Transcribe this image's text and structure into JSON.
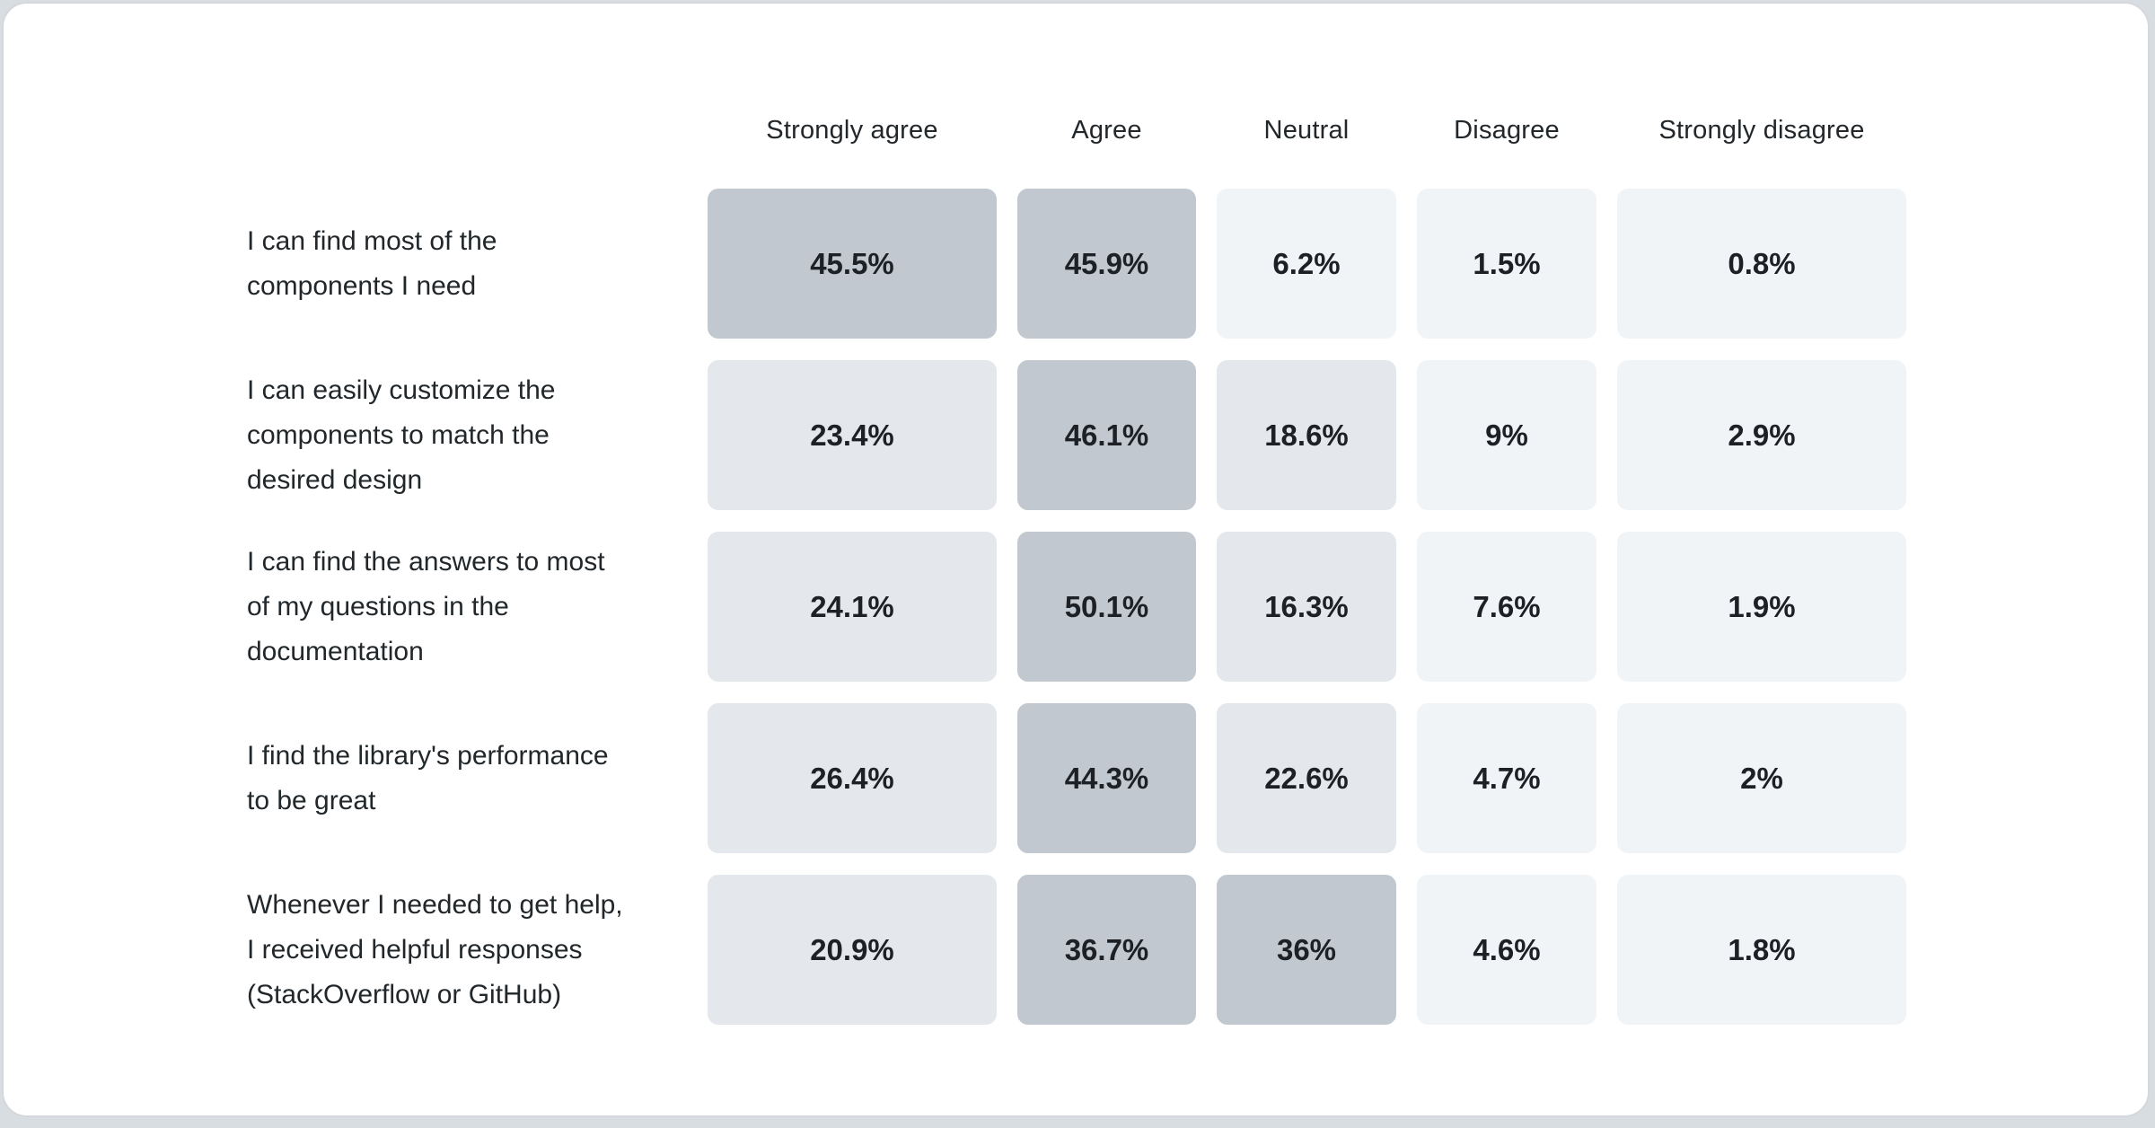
{
  "header": {
    "columns": [
      "Strongly agree",
      "Agree",
      "Neutral",
      "Disagree",
      "Strongly disagree"
    ]
  },
  "rows": [
    {
      "label": "I can find most of the components I need",
      "label_lines": [
        "I can find most of the",
        "components I need"
      ],
      "values": [
        "45.5%",
        "45.9%",
        "6.2%",
        "1.5%",
        "0.8%"
      ]
    },
    {
      "label": "I can easily customize the components to match the desired design",
      "label_lines": [
        "I can easily customize the",
        "components to match the",
        "desired design"
      ],
      "values": [
        "23.4%",
        "46.1%",
        "18.6%",
        "9%",
        "2.9%"
      ]
    },
    {
      "label": "I can find the answers to most of my questions in the documentation",
      "label_lines": [
        "I can find the answers to most",
        "of my questions in the",
        "documentation"
      ],
      "values": [
        "24.1%",
        "50.1%",
        "16.3%",
        "7.6%",
        "1.9%"
      ]
    },
    {
      "label": "I find the library's performance to be great",
      "label_lines": [
        "I find the library's performance",
        "to be great"
      ],
      "values": [
        "26.4%",
        "44.3%",
        "22.6%",
        "4.7%",
        "2%"
      ]
    },
    {
      "label": "Whenever I needed to get help, I received helpful responses (StackOverflow or GitHub)",
      "label_lines": [
        "Whenever I needed to get help,",
        "I received helpful responses",
        "(StackOverflow or GitHub)"
      ],
      "values": [
        "20.9%",
        "36.7%",
        "36%",
        "4.6%",
        "1.8%"
      ]
    }
  ],
  "colors": {
    "cell_high": "#c1c8d0",
    "cell_mid": "#e4e7eb",
    "cell_low": "#f1f4f7",
    "text": "#21272a",
    "value_text": "#1d2126",
    "card_bg": "#ffffff",
    "card_border": "#d4d8dc",
    "page_bg": "#d8dde2"
  },
  "thresholds": {
    "high_min": 30,
    "mid_min": 10
  },
  "chart_data": {
    "type": "heatmap",
    "title": "",
    "columns": [
      "Strongly agree",
      "Agree",
      "Neutral",
      "Disagree",
      "Strongly disagree"
    ],
    "row_labels": [
      "I can find most of the components I need",
      "I can easily customize the components to match the desired design",
      "I can find the answers to most of my questions in the documentation",
      "I find the library's performance to be great",
      "Whenever I needed to get help, I received helpful responses (StackOverflow or GitHub)"
    ],
    "values": [
      [
        45.5,
        45.9,
        6.2,
        1.5,
        0.8
      ],
      [
        23.4,
        46.1,
        18.6,
        9,
        2.9
      ],
      [
        24.1,
        50.1,
        16.3,
        7.6,
        1.9
      ],
      [
        26.4,
        44.3,
        22.6,
        4.7,
        2
      ],
      [
        20.9,
        36.7,
        36,
        4.6,
        1.8
      ]
    ],
    "unit": "%",
    "legend": "none",
    "color_mapping": "cell shade darkens with value: <10% light, 10-30% medium, >30% dark"
  }
}
